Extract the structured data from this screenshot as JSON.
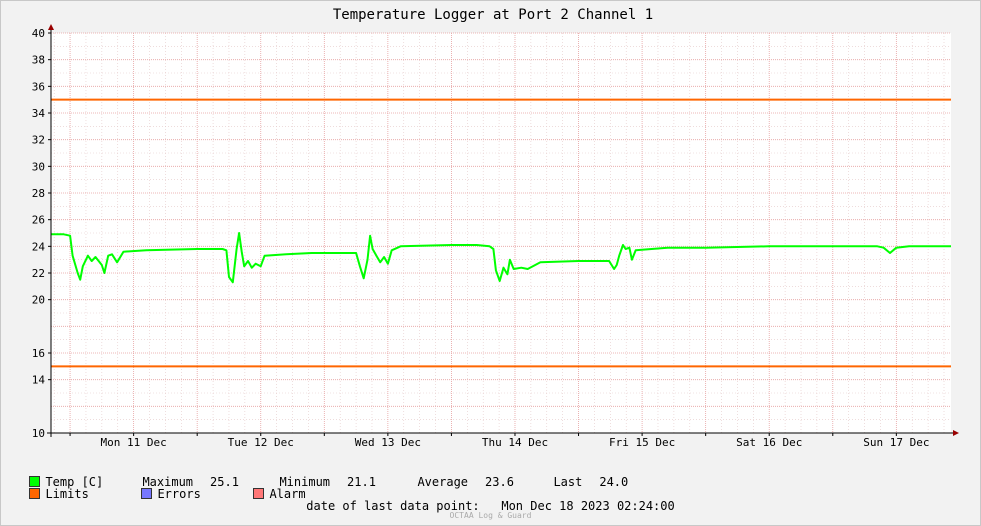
{
  "chart_data": {
    "type": "line",
    "title": "Temperature Logger at Port 2 Channel 1",
    "ylim": [
      10,
      40
    ],
    "y_ticks": [
      10,
      14,
      16,
      20,
      22,
      24,
      26,
      28,
      30,
      32,
      34,
      36,
      38,
      40
    ],
    "x_range_days": [
      10.85,
      17.93
    ],
    "x_tick_labels": [
      {
        "label": "Mon 11 Dec",
        "day": 11.5
      },
      {
        "label": "Tue 12 Dec",
        "day": 12.5
      },
      {
        "label": "Wed 13 Dec",
        "day": 13.5
      },
      {
        "label": "Thu 14 Dec",
        "day": 14.5
      },
      {
        "label": "Fri 15 Dec",
        "day": 15.5
      },
      {
        "label": "Sat 16 Dec",
        "day": 16.5
      },
      {
        "label": "Sun 17 Dec",
        "day": 17.5
      }
    ],
    "grid": true,
    "limits": {
      "upper": 35,
      "lower": 15
    },
    "series": [
      {
        "name": "Temp [C]",
        "color": "#00ff00",
        "points": [
          [
            10.85,
            24.9
          ],
          [
            10.95,
            24.9
          ],
          [
            11.0,
            24.8
          ],
          [
            11.02,
            23.3
          ],
          [
            11.06,
            22.0
          ],
          [
            11.08,
            21.5
          ],
          [
            11.1,
            22.5
          ],
          [
            11.14,
            23.3
          ],
          [
            11.17,
            22.9
          ],
          [
            11.2,
            23.2
          ],
          [
            11.25,
            22.6
          ],
          [
            11.27,
            22.0
          ],
          [
            11.3,
            23.3
          ],
          [
            11.33,
            23.4
          ],
          [
            11.37,
            22.8
          ],
          [
            11.42,
            23.6
          ],
          [
            11.6,
            23.7
          ],
          [
            12.0,
            23.8
          ],
          [
            12.2,
            23.8
          ],
          [
            12.23,
            23.7
          ],
          [
            12.25,
            21.7
          ],
          [
            12.28,
            21.3
          ],
          [
            12.31,
            23.8
          ],
          [
            12.33,
            25.0
          ],
          [
            12.35,
            23.6
          ],
          [
            12.37,
            22.5
          ],
          [
            12.4,
            22.9
          ],
          [
            12.43,
            22.4
          ],
          [
            12.46,
            22.7
          ],
          [
            12.5,
            22.5
          ],
          [
            12.53,
            23.3
          ],
          [
            12.7,
            23.4
          ],
          [
            12.9,
            23.5
          ],
          [
            13.2,
            23.5
          ],
          [
            13.25,
            23.5
          ],
          [
            13.28,
            22.5
          ],
          [
            13.31,
            21.6
          ],
          [
            13.34,
            23.0
          ],
          [
            13.36,
            24.8
          ],
          [
            13.38,
            23.8
          ],
          [
            13.41,
            23.3
          ],
          [
            13.44,
            22.8
          ],
          [
            13.47,
            23.2
          ],
          [
            13.5,
            22.7
          ],
          [
            13.53,
            23.7
          ],
          [
            13.6,
            24.0
          ],
          [
            14.0,
            24.1
          ],
          [
            14.2,
            24.1
          ],
          [
            14.3,
            24.0
          ],
          [
            14.33,
            23.8
          ],
          [
            14.35,
            22.2
          ],
          [
            14.38,
            21.4
          ],
          [
            14.41,
            22.4
          ],
          [
            14.44,
            21.9
          ],
          [
            14.46,
            23.0
          ],
          [
            14.49,
            22.3
          ],
          [
            14.55,
            22.4
          ],
          [
            14.6,
            22.3
          ],
          [
            14.7,
            22.8
          ],
          [
            15.0,
            22.9
          ],
          [
            15.2,
            22.9
          ],
          [
            15.24,
            22.9
          ],
          [
            15.28,
            22.3
          ],
          [
            15.3,
            22.6
          ],
          [
            15.32,
            23.3
          ],
          [
            15.35,
            24.1
          ],
          [
            15.37,
            23.8
          ],
          [
            15.4,
            23.9
          ],
          [
            15.42,
            23.0
          ],
          [
            15.45,
            23.7
          ],
          [
            15.7,
            23.9
          ],
          [
            16.0,
            23.9
          ],
          [
            16.5,
            24.0
          ],
          [
            17.0,
            24.0
          ],
          [
            17.35,
            24.0
          ],
          [
            17.4,
            23.9
          ],
          [
            17.45,
            23.5
          ],
          [
            17.5,
            23.9
          ],
          [
            17.6,
            24.0
          ],
          [
            17.93,
            24.0
          ]
        ]
      }
    ],
    "legend": [
      {
        "label": "Temp [C]",
        "color": "#00ff00"
      },
      {
        "label": "Limits",
        "color": "#ff6600"
      },
      {
        "label": "Errors",
        "color": "#7777ff"
      },
      {
        "label": "Alarm",
        "color": "#ff7777"
      }
    ],
    "stats": {
      "maximum_label": "Maximum",
      "maximum": "25.1",
      "minimum_label": "Minimum",
      "minimum": "21.1",
      "average_label": "Average",
      "average": "23.6",
      "last_label": "Last",
      "last": "24.0"
    },
    "footer_label": "date of last data point:",
    "footer_value": "Mon Dec 18 2023 02:24:00",
    "watermark": "OCTAA Log & Guard"
  }
}
